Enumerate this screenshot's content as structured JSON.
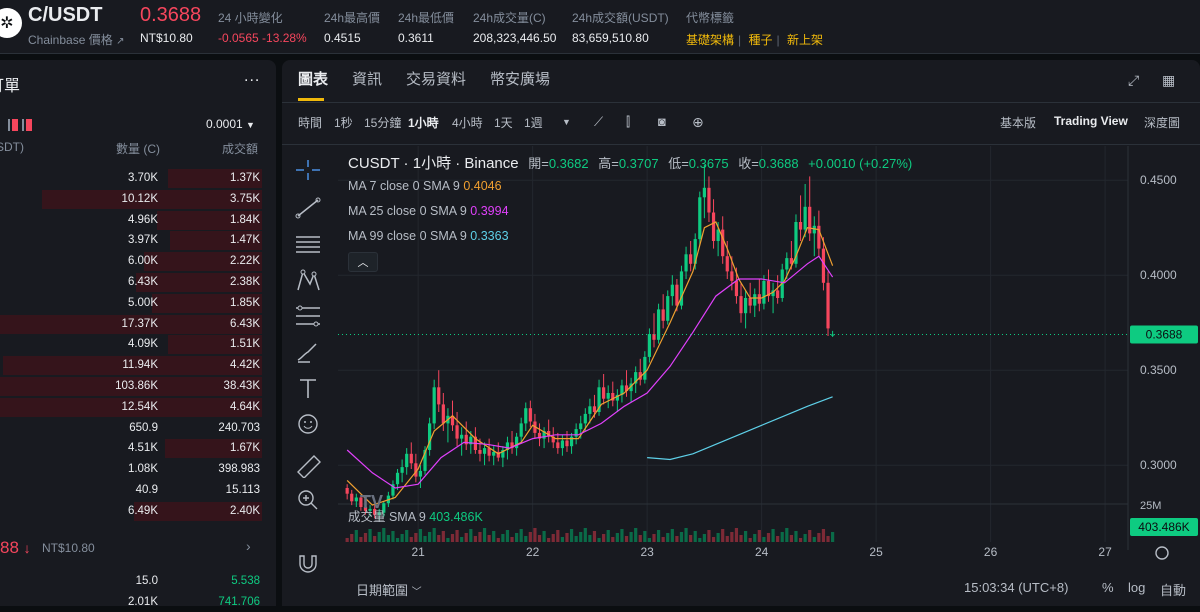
{
  "header": {
    "logo_icon": "chainbase-logo-icon",
    "pair": "C/USDT",
    "sub_label": "Chainbase 價格",
    "price": "0.3688",
    "price_twd": "NT$10.80",
    "stats": [
      {
        "label": "24 小時變化",
        "value": "-0.0565 -13.28%",
        "color": "#f6465d"
      },
      {
        "label": "24h最高價",
        "value": "0.4515"
      },
      {
        "label": "24h最低價",
        "value": "0.3611"
      },
      {
        "label": "24h成交量(C)",
        "value": "208,323,446.50"
      },
      {
        "label": "24h成交額(USDT)",
        "value": "83,659,510.80"
      },
      {
        "label": "代幣標籤",
        "value": ""
      }
    ],
    "tags": [
      "基礎架構",
      "種子",
      "新上架"
    ]
  },
  "orderbook": {
    "title": "訂單",
    "more": "...",
    "precision": "0.0001",
    "headers": [
      "SDT)",
      "數量 (C)",
      "成交額"
    ],
    "asks": [
      {
        "qty": "3.70K",
        "total": "1.37K",
        "depth": 0.36
      },
      {
        "qty": "10.12K",
        "total": "3.75K",
        "depth": 0.84
      },
      {
        "qty": "4.96K",
        "total": "1.84K",
        "depth": 0.4
      },
      {
        "qty": "3.97K",
        "total": "1.47K",
        "depth": 0.35
      },
      {
        "qty": "6.00K",
        "total": "2.22K",
        "depth": 0.45
      },
      {
        "qty": "6.43K",
        "total": "2.38K",
        "depth": 0.48
      },
      {
        "qty": "5.00K",
        "total": "1.85K",
        "depth": 0.42
      },
      {
        "qty": "17.37K",
        "total": "6.43K",
        "depth": 1.0
      },
      {
        "qty": "4.09K",
        "total": "1.51K",
        "depth": 0.36
      },
      {
        "qty": "11.94K",
        "total": "4.42K",
        "depth": 0.99
      },
      {
        "qty": "103.86K",
        "total": "38.43K",
        "depth": 1.0
      },
      {
        "qty": "12.54K",
        "total": "4.64K",
        "depth": 1.0
      },
      {
        "qty": "650.9",
        "total": "240.703",
        "depth": 0.0
      },
      {
        "qty": "4.51K",
        "total": "1.67K",
        "depth": 0.37
      },
      {
        "qty": "1.08K",
        "total": "398.983",
        "depth": 0.0
      },
      {
        "qty": "40.9",
        "total": "15.113",
        "depth": 0.0
      },
      {
        "qty": "6.49K",
        "total": "2.40K",
        "depth": 0.49
      }
    ],
    "last_price": "88",
    "last_price_twd": "NT$10.80",
    "bids": [
      {
        "qty": "15.0",
        "total": "5.538"
      },
      {
        "qty": "2.01K",
        "total": "741.706"
      }
    ]
  },
  "tabs": [
    "圖表",
    "資訊",
    "交易資料",
    "幣安廣場"
  ],
  "toolbar": {
    "intervals": [
      "時間",
      "1秒",
      "15分鐘",
      "1小時",
      "4小時",
      "1天",
      "1週"
    ],
    "active_interval": "1小時",
    "views": [
      "基本版",
      "Trading View",
      "深度圖"
    ],
    "active_view": "Trading View"
  },
  "legend": {
    "symbol": "CUSDT · 1小時 · Binance",
    "open_label": "開=",
    "open": "0.3682",
    "high_label": "高=",
    "high": "0.3707",
    "low_label": "低=",
    "low": "0.3675",
    "close_label": "收=",
    "close": "0.3688",
    "change": "+0.0010 (+0.27%)",
    "ma": [
      {
        "label": "MA 7 close 0 SMA 9",
        "value": "0.4046",
        "color": "#f0a030"
      },
      {
        "label": "MA 25 close 0 SMA 9",
        "value": "0.3994",
        "color": "#e040fb"
      },
      {
        "label": "MA 99 close 0 SMA 9",
        "value": "0.3363",
        "color": "#5ed0e8"
      }
    ],
    "volume_label": "成交量 SMA 9",
    "volume_value": "403.486K"
  },
  "chart_data": {
    "type": "candlestick",
    "title": "CUSDT · 1小時 · Binance",
    "x_ticks": [
      "21",
      "22",
      "23",
      "24",
      "25",
      "26",
      "27"
    ],
    "y_ticks": [
      "0.4500",
      "0.4000",
      "0.3500",
      "0.3000"
    ],
    "ylim": [
      0.268,
      0.468
    ],
    "last_price_label": "0.3688",
    "volume_axis_label": "25M",
    "volume_last_label": "403.486K",
    "x_range_days": [
      20.3,
      27.2
    ],
    "candles": [
      [
        20.38,
        0.288,
        0.29,
        0.282,
        0.285
      ],
      [
        20.42,
        0.285,
        0.287,
        0.279,
        0.281
      ],
      [
        20.46,
        0.281,
        0.285,
        0.278,
        0.283
      ],
      [
        20.5,
        0.283,
        0.284,
        0.276,
        0.278
      ],
      [
        20.54,
        0.278,
        0.281,
        0.274,
        0.276
      ],
      [
        20.58,
        0.276,
        0.279,
        0.273,
        0.277
      ],
      [
        20.62,
        0.277,
        0.279,
        0.272,
        0.274
      ],
      [
        20.66,
        0.274,
        0.277,
        0.271,
        0.275
      ],
      [
        20.7,
        0.275,
        0.281,
        0.273,
        0.28
      ],
      [
        20.74,
        0.28,
        0.286,
        0.278,
        0.284
      ],
      [
        20.78,
        0.284,
        0.292,
        0.282,
        0.29
      ],
      [
        20.82,
        0.29,
        0.298,
        0.287,
        0.296
      ],
      [
        20.86,
        0.296,
        0.303,
        0.291,
        0.299
      ],
      [
        20.9,
        0.299,
        0.309,
        0.295,
        0.306
      ],
      [
        20.94,
        0.306,
        0.312,
        0.298,
        0.301
      ],
      [
        20.98,
        0.301,
        0.306,
        0.291,
        0.294
      ],
      [
        21.02,
        0.294,
        0.3,
        0.288,
        0.297
      ],
      [
        21.06,
        0.297,
        0.31,
        0.295,
        0.308
      ],
      [
        21.1,
        0.308,
        0.325,
        0.305,
        0.322
      ],
      [
        21.14,
        0.322,
        0.345,
        0.319,
        0.341
      ],
      [
        21.18,
        0.341,
        0.35,
        0.328,
        0.332
      ],
      [
        21.22,
        0.332,
        0.338,
        0.318,
        0.322
      ],
      [
        21.26,
        0.322,
        0.33,
        0.312,
        0.326
      ],
      [
        21.3,
        0.326,
        0.334,
        0.318,
        0.321
      ],
      [
        21.34,
        0.321,
        0.328,
        0.31,
        0.314
      ],
      [
        21.38,
        0.314,
        0.32,
        0.305,
        0.316
      ],
      [
        21.42,
        0.316,
        0.323,
        0.308,
        0.311
      ],
      [
        21.46,
        0.311,
        0.318,
        0.306,
        0.315
      ],
      [
        21.5,
        0.315,
        0.32,
        0.306,
        0.308
      ],
      [
        21.54,
        0.308,
        0.314,
        0.302,
        0.306
      ],
      [
        21.58,
        0.306,
        0.312,
        0.3,
        0.309
      ],
      [
        21.62,
        0.309,
        0.314,
        0.302,
        0.305
      ],
      [
        21.66,
        0.305,
        0.31,
        0.3,
        0.307
      ],
      [
        21.7,
        0.307,
        0.312,
        0.302,
        0.304
      ],
      [
        21.74,
        0.304,
        0.31,
        0.299,
        0.308
      ],
      [
        21.78,
        0.308,
        0.315,
        0.303,
        0.312
      ],
      [
        21.82,
        0.312,
        0.318,
        0.306,
        0.309
      ],
      [
        21.86,
        0.309,
        0.317,
        0.305,
        0.315
      ],
      [
        21.9,
        0.315,
        0.325,
        0.312,
        0.322
      ],
      [
        21.94,
        0.322,
        0.333,
        0.318,
        0.33
      ],
      [
        21.98,
        0.33,
        0.334,
        0.32,
        0.323
      ],
      [
        22.02,
        0.323,
        0.327,
        0.314,
        0.317
      ],
      [
        22.06,
        0.317,
        0.322,
        0.31,
        0.314
      ],
      [
        22.1,
        0.314,
        0.32,
        0.309,
        0.318
      ],
      [
        22.14,
        0.318,
        0.324,
        0.312,
        0.315
      ],
      [
        22.18,
        0.315,
        0.32,
        0.309,
        0.312
      ],
      [
        22.22,
        0.312,
        0.317,
        0.306,
        0.309
      ],
      [
        22.26,
        0.309,
        0.316,
        0.305,
        0.313
      ],
      [
        22.3,
        0.313,
        0.318,
        0.307,
        0.31
      ],
      [
        22.34,
        0.31,
        0.317,
        0.306,
        0.315
      ],
      [
        22.38,
        0.315,
        0.322,
        0.311,
        0.319
      ],
      [
        22.42,
        0.319,
        0.326,
        0.314,
        0.322
      ],
      [
        22.46,
        0.322,
        0.33,
        0.318,
        0.327
      ],
      [
        22.5,
        0.327,
        0.335,
        0.322,
        0.331
      ],
      [
        22.54,
        0.331,
        0.337,
        0.325,
        0.328
      ],
      [
        22.58,
        0.328,
        0.345,
        0.326,
        0.341
      ],
      [
        22.62,
        0.341,
        0.348,
        0.332,
        0.335
      ],
      [
        22.66,
        0.335,
        0.342,
        0.33,
        0.338
      ],
      [
        22.7,
        0.338,
        0.344,
        0.331,
        0.334
      ],
      [
        22.74,
        0.334,
        0.34,
        0.328,
        0.337
      ],
      [
        22.78,
        0.337,
        0.345,
        0.333,
        0.342
      ],
      [
        22.82,
        0.342,
        0.35,
        0.336,
        0.339
      ],
      [
        22.86,
        0.339,
        0.346,
        0.333,
        0.343
      ],
      [
        22.9,
        0.343,
        0.352,
        0.338,
        0.349
      ],
      [
        22.94,
        0.349,
        0.356,
        0.342,
        0.345
      ],
      [
        22.98,
        0.345,
        0.36,
        0.343,
        0.357
      ],
      [
        23.02,
        0.357,
        0.372,
        0.354,
        0.369
      ],
      [
        23.06,
        0.369,
        0.38,
        0.362,
        0.366
      ],
      [
        23.1,
        0.366,
        0.385,
        0.364,
        0.382
      ],
      [
        23.14,
        0.382,
        0.39,
        0.372,
        0.376
      ],
      [
        23.18,
        0.376,
        0.392,
        0.374,
        0.389
      ],
      [
        23.22,
        0.389,
        0.4,
        0.384,
        0.395
      ],
      [
        23.26,
        0.395,
        0.398,
        0.381,
        0.384
      ],
      [
        23.3,
        0.384,
        0.405,
        0.382,
        0.402
      ],
      [
        23.34,
        0.402,
        0.415,
        0.398,
        0.411
      ],
      [
        23.38,
        0.411,
        0.418,
        0.402,
        0.406
      ],
      [
        23.42,
        0.406,
        0.422,
        0.403,
        0.419
      ],
      [
        23.46,
        0.419,
        0.444,
        0.416,
        0.441
      ],
      [
        23.5,
        0.441,
        0.458,
        0.43,
        0.446
      ],
      [
        23.54,
        0.446,
        0.452,
        0.428,
        0.433
      ],
      [
        23.58,
        0.433,
        0.44,
        0.414,
        0.418
      ],
      [
        23.62,
        0.418,
        0.428,
        0.41,
        0.424
      ],
      [
        23.66,
        0.424,
        0.431,
        0.406,
        0.41
      ],
      [
        23.7,
        0.41,
        0.418,
        0.398,
        0.402
      ],
      [
        23.74,
        0.402,
        0.41,
        0.392,
        0.397
      ],
      [
        23.78,
        0.397,
        0.404,
        0.385,
        0.389
      ],
      [
        23.82,
        0.389,
        0.396,
        0.375,
        0.38
      ],
      [
        23.86,
        0.38,
        0.392,
        0.372,
        0.388
      ],
      [
        23.9,
        0.388,
        0.396,
        0.38,
        0.384
      ],
      [
        23.94,
        0.384,
        0.393,
        0.378,
        0.39
      ],
      [
        23.98,
        0.39,
        0.398,
        0.381,
        0.385
      ],
      [
        24.02,
        0.385,
        0.4,
        0.382,
        0.397
      ],
      [
        24.06,
        0.397,
        0.403,
        0.386,
        0.389
      ],
      [
        24.1,
        0.389,
        0.396,
        0.38,
        0.392
      ],
      [
        24.14,
        0.392,
        0.4,
        0.385,
        0.388
      ],
      [
        24.18,
        0.388,
        0.406,
        0.386,
        0.403
      ],
      [
        24.22,
        0.403,
        0.412,
        0.398,
        0.409
      ],
      [
        24.26,
        0.409,
        0.418,
        0.403,
        0.406
      ],
      [
        24.3,
        0.406,
        0.432,
        0.404,
        0.428
      ],
      [
        24.34,
        0.428,
        0.442,
        0.418,
        0.424
      ],
      [
        24.38,
        0.424,
        0.448,
        0.42,
        0.436
      ],
      [
        24.42,
        0.436,
        0.452,
        0.418,
        0.422
      ],
      [
        24.46,
        0.422,
        0.431,
        0.41,
        0.426
      ],
      [
        24.5,
        0.426,
        0.434,
        0.41,
        0.414
      ],
      [
        24.54,
        0.414,
        0.42,
        0.392,
        0.396
      ],
      [
        24.58,
        0.396,
        0.402,
        0.368,
        0.372
      ],
      [
        24.62,
        0.3682,
        0.3707,
        0.3675,
        0.3688
      ]
    ],
    "ma7": [
      [
        20.38,
        0.292
      ],
      [
        20.6,
        0.279
      ],
      [
        20.8,
        0.283
      ],
      [
        21.0,
        0.298
      ],
      [
        21.14,
        0.318
      ],
      [
        21.3,
        0.326
      ],
      [
        21.5,
        0.314
      ],
      [
        21.7,
        0.306
      ],
      [
        21.9,
        0.312
      ],
      [
        22.0,
        0.321
      ],
      [
        22.2,
        0.314
      ],
      [
        22.4,
        0.314
      ],
      [
        22.6,
        0.332
      ],
      [
        22.8,
        0.338
      ],
      [
        23.0,
        0.35
      ],
      [
        23.2,
        0.375
      ],
      [
        23.4,
        0.402
      ],
      [
        23.5,
        0.425
      ],
      [
        23.6,
        0.428
      ],
      [
        23.7,
        0.414
      ],
      [
        23.8,
        0.398
      ],
      [
        23.9,
        0.388
      ],
      [
        24.0,
        0.388
      ],
      [
        24.1,
        0.391
      ],
      [
        24.2,
        0.397
      ],
      [
        24.3,
        0.41
      ],
      [
        24.4,
        0.425
      ],
      [
        24.5,
        0.424
      ],
      [
        24.62,
        0.405
      ]
    ],
    "ma25": [
      [
        20.38,
        0.308
      ],
      [
        20.6,
        0.296
      ],
      [
        20.8,
        0.288
      ],
      [
        21.0,
        0.29
      ],
      [
        21.2,
        0.304
      ],
      [
        21.4,
        0.312
      ],
      [
        21.6,
        0.311
      ],
      [
        21.8,
        0.309
      ],
      [
        22.0,
        0.314
      ],
      [
        22.2,
        0.316
      ],
      [
        22.4,
        0.316
      ],
      [
        22.6,
        0.322
      ],
      [
        22.8,
        0.331
      ],
      [
        23.0,
        0.338
      ],
      [
        23.2,
        0.352
      ],
      [
        23.4,
        0.37
      ],
      [
        23.6,
        0.389
      ],
      [
        23.8,
        0.398
      ],
      [
        24.0,
        0.398
      ],
      [
        24.2,
        0.396
      ],
      [
        24.4,
        0.406
      ],
      [
        24.5,
        0.41
      ],
      [
        24.62,
        0.399
      ]
    ],
    "ma99": [
      [
        23.0,
        0.304
      ],
      [
        23.2,
        0.303
      ],
      [
        23.4,
        0.306
      ],
      [
        23.6,
        0.311
      ],
      [
        23.8,
        0.316
      ],
      [
        24.0,
        0.321
      ],
      [
        24.2,
        0.326
      ],
      [
        24.4,
        0.331
      ],
      [
        24.62,
        0.336
      ]
    ]
  },
  "footer": {
    "date_range": "日期範圍",
    "time": "15:03:34 (UTC+8)",
    "percent": "%",
    "log": "log",
    "auto": "自動"
  }
}
